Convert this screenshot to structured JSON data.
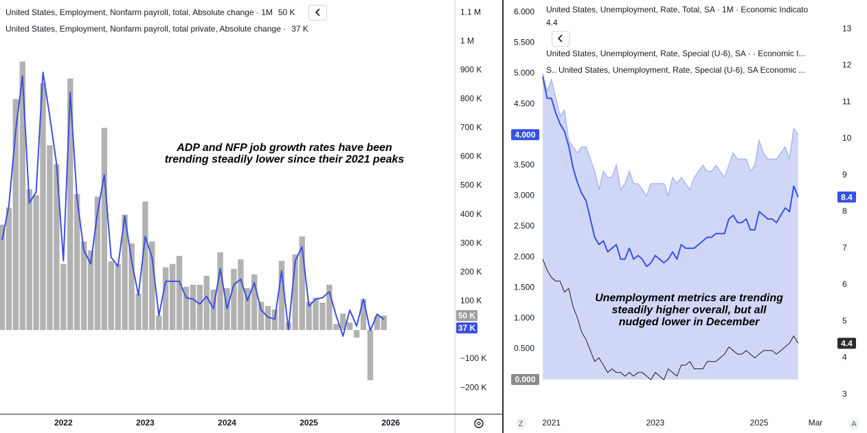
{
  "chart_data": [
    {
      "type": "bar",
      "annotation": [
        "ADP and NFP job growth rates have been",
        "trending steadily lower since their 2021 peaks"
      ],
      "xlim": [
        -0.3,
        66.4
      ],
      "xticks": [
        {
          "value": 9,
          "label": "2022"
        },
        {
          "value": 21,
          "label": "2023"
        },
        {
          "value": 33,
          "label": "2024"
        },
        {
          "value": 45,
          "label": "2025"
        },
        {
          "value": 57,
          "label": "2026"
        }
      ],
      "ylim": [
        -290000,
        1143000
      ],
      "yticks": [
        {
          "value": 1100000,
          "label": "1.1 M"
        },
        {
          "value": 1000000,
          "label": "1 M"
        },
        {
          "value": 900000,
          "label": "900 K"
        },
        {
          "value": 800000,
          "label": "800 K"
        },
        {
          "value": 700000,
          "label": "700 K"
        },
        {
          "value": 600000,
          "label": "600 K"
        },
        {
          "value": 500000,
          "label": "500 K"
        },
        {
          "value": 400000,
          "label": "400 K"
        },
        {
          "value": 300000,
          "label": "300 K"
        },
        {
          "value": 200000,
          "label": "200 K"
        },
        {
          "value": 100000,
          "label": "100 K"
        },
        {
          "value": -100000,
          "label": "−100 K"
        },
        {
          "value": -200000,
          "label": "−200 K"
        }
      ],
      "grid": false,
      "series": [
        {
          "name": "United States, Employment, Nonfarm payroll, total, Absolute change · 1M",
          "type": "bar",
          "color": "#b2b2b2",
          "last_value_label": "50 K",
          "values": [
            365000,
            424000,
            800000,
            930000,
            488000,
            467000,
            855000,
            640000,
            574000,
            229000,
            871000,
            471000,
            307000,
            276000,
            462000,
            700000,
            238000,
            229000,
            400000,
            300000,
            126000,
            445000,
            307000,
            50000,
            217000,
            229000,
            257000,
            150000,
            157000,
            157000,
            188000,
            140000,
            269000,
            145000,
            212000,
            245000,
            145000,
            193000,
            98000,
            83000,
            71000,
            240000,
            26000,
            262000,
            324000,
            98000,
            112000,
            95000,
            157000,
            21000,
            57000,
            26000,
            -26000,
            107000,
            -174000,
            48000,
            50000
          ]
        },
        {
          "name": "United States, Employment, Nonfarm payroll, total private, Absolute change ·",
          "type": "line",
          "color": "#3b4fe0",
          "last_value_label": "37 K",
          "values": [
            312000,
            430000,
            690000,
            880000,
            440000,
            478000,
            893000,
            740000,
            574000,
            240000,
            823000,
            454000,
            276000,
            229000,
            407000,
            538000,
            252000,
            221000,
            395000,
            240000,
            121000,
            324000,
            252000,
            50000,
            169000,
            169000,
            169000,
            112000,
            107000,
            90000,
            117000,
            74000,
            212000,
            74000,
            157000,
            176000,
            102000,
            164000,
            69000,
            45000,
            38000,
            205000,
            2000,
            240000,
            288000,
            83000,
            107000,
            112000,
            133000,
            50000,
            -21000,
            69000,
            14000,
            107000,
            -2000,
            55000,
            37000
          ]
        }
      ]
    },
    {
      "type": "line",
      "annotation": [
        "Unemployment metrics are trending",
        "steadily higher overall, but all",
        "nudged lower in December"
      ],
      "xlim": [
        -9.05,
        66.98
      ],
      "xticks": [
        {
          "value": 2,
          "label": "2021"
        },
        {
          "value": 26,
          "label": "2023"
        },
        {
          "value": 50,
          "label": "2025"
        },
        {
          "value": 63,
          "label": "Mar"
        }
      ],
      "ylim": [
        -0.56,
        6.2
      ],
      "yticks": [
        {
          "value": 6,
          "label": "6.000"
        },
        {
          "value": 5.5,
          "label": "5.500"
        },
        {
          "value": 5,
          "label": "5.000"
        },
        {
          "value": 4.5,
          "label": "4.500"
        },
        {
          "value": 4,
          "label": "4.000"
        },
        {
          "value": 3.5,
          "label": "3.500"
        },
        {
          "value": 3,
          "label": "3.000"
        },
        {
          "value": 2.5,
          "label": "2.500"
        },
        {
          "value": 2,
          "label": "2.000"
        },
        {
          "value": 1.5,
          "label": "1.500"
        },
        {
          "value": 1,
          "label": "1.000"
        },
        {
          "value": 0.5,
          "label": "0.500"
        },
        {
          "value": 0,
          "label": "0.000"
        }
      ],
      "y2lim": [
        2.47,
        13.79
      ],
      "y2ticks": [
        3,
        4,
        5,
        6,
        7,
        8,
        9,
        10,
        11,
        12,
        13
      ],
      "grid": false,
      "series": [
        {
          "name": "United States, Unemployment, Rate, Total, SA · 1M · Economic Indicato",
          "type": "line",
          "axis": "y2",
          "color": "#1e1e1e",
          "last_value_label": "4.4",
          "values": [
            6.7,
            6.4,
            6.2,
            6.1,
            6.1,
            5.8,
            5.9,
            5.4,
            5.1,
            4.7,
            4.5,
            4.2,
            3.9,
            4.0,
            3.8,
            3.6,
            3.7,
            3.6,
            3.6,
            3.5,
            3.6,
            3.5,
            3.6,
            3.6,
            3.5,
            3.4,
            3.6,
            3.5,
            3.4,
            3.7,
            3.6,
            3.5,
            3.8,
            3.8,
            3.9,
            3.7,
            3.7,
            3.7,
            3.9,
            3.9,
            3.9,
            4.0,
            4.1,
            4.3,
            4.2,
            4.1,
            4.1,
            4.2,
            4.1,
            4.0,
            4.1,
            4.2,
            4.2,
            4.2,
            4.1,
            4.2,
            4.3,
            4.4,
            4.6,
            4.4
          ]
        },
        {
          "name": "United States, Unemployment, Rate, Special (U-6), SA · · Economic I...",
          "type": "line",
          "axis": "y2",
          "color": "#3550e6",
          "last_value_label": "8.4",
          "values": [
            11.7,
            11.1,
            11.1,
            10.7,
            10.4,
            10.2,
            9.8,
            9.2,
            8.8,
            8.5,
            8.3,
            7.8,
            7.3,
            7.1,
            7.2,
            6.9,
            7.0,
            7.1,
            6.7,
            6.7,
            7.0,
            6.7,
            6.8,
            6.7,
            6.5,
            6.6,
            6.8,
            6.7,
            6.6,
            6.7,
            6.9,
            6.7,
            7.1,
            7.0,
            7.0,
            7.0,
            7.1,
            7.2,
            7.3,
            7.3,
            7.4,
            7.4,
            7.4,
            7.8,
            7.9,
            7.7,
            7.7,
            7.8,
            7.5,
            7.5,
            8.0,
            7.9,
            7.8,
            7.8,
            7.7,
            7.9,
            8.1,
            8.0,
            8.7,
            8.4
          ]
        },
        {
          "name": "S.. United States, Unemployment, Rate, Special (U-6), SA Economic ...",
          "type": "area",
          "color": "#a9b7ee",
          "last_value_label": "4.000",
          "values": [
            5.0,
            4.7,
            4.9,
            4.6,
            4.3,
            4.4,
            3.9,
            3.8,
            3.7,
            3.8,
            3.8,
            3.6,
            3.4,
            3.1,
            3.4,
            3.3,
            3.3,
            3.5,
            3.1,
            3.2,
            3.4,
            3.2,
            3.2,
            3.1,
            3.0,
            3.2,
            3.2,
            3.2,
            3.2,
            3.0,
            3.3,
            3.2,
            3.3,
            3.2,
            3.1,
            3.3,
            3.4,
            3.5,
            3.4,
            3.4,
            3.5,
            3.4,
            3.3,
            3.5,
            3.7,
            3.6,
            3.6,
            3.6,
            3.4,
            3.5,
            3.9,
            3.7,
            3.6,
            3.6,
            3.6,
            3.7,
            3.8,
            3.6,
            4.1,
            4.0
          ]
        }
      ]
    }
  ],
  "ui": {
    "zoom_button": "Z",
    "auto_button": "A"
  }
}
